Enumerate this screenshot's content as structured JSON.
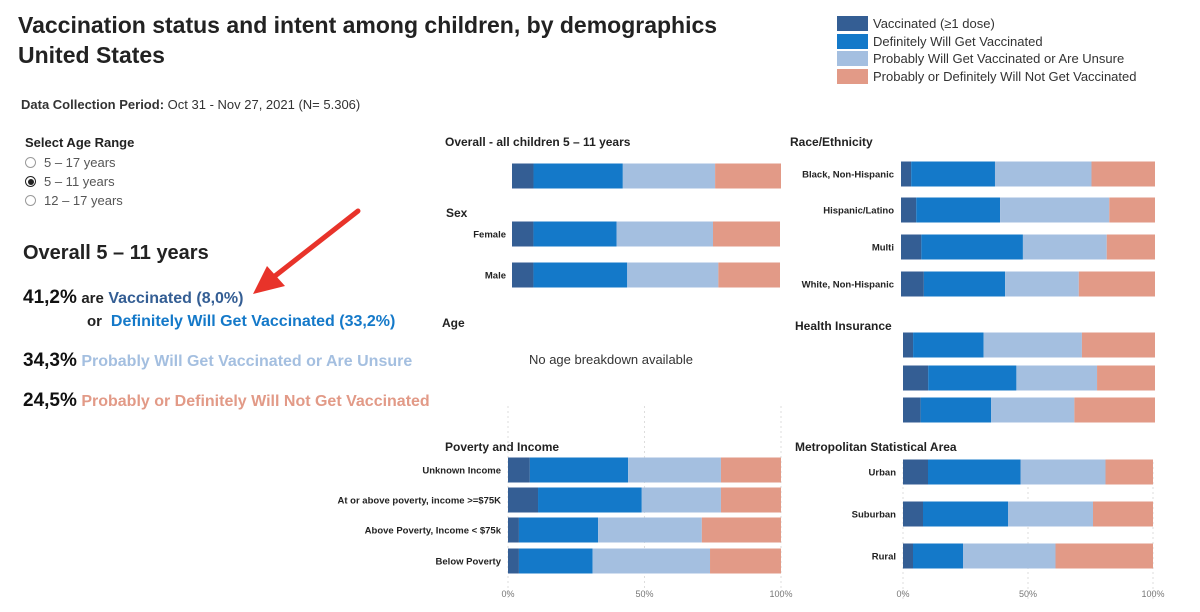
{
  "header": {
    "title_line1": "Vaccination status and intent among children, by demographics",
    "title_line2": "United States"
  },
  "collection": {
    "label": "Data Collection Period:",
    "value": "Oct 31 - Nov 27, 2021  (N= 5.306)"
  },
  "legend": [
    {
      "label": "Vaccinated (≥1 dose)",
      "color": "#345e94"
    },
    {
      "label": "Definitely Will Get Vaccinated",
      "color": "#1479c9"
    },
    {
      "label": "Probably Will Get Vaccinated or Are Unsure",
      "color": "#a4bfe0"
    },
    {
      "label": "Probably or Definitely Will Not Get Vaccinated",
      "color": "#e29a87"
    }
  ],
  "age_filter": {
    "title": "Select Age Range",
    "options": [
      "5 – 17 years",
      "5 – 11 years",
      "12 – 17 years"
    ],
    "selected": "5 – 11 years"
  },
  "summary": {
    "title": "Overall 5 – 11 years",
    "line1_pct": "41,2%",
    "line1_word": "are",
    "line1_text": "Vaccinated (8,0%)",
    "line2_word": "or",
    "line2_text": "Definitely Will Get Vaccinated (33,2%)",
    "line3_pct": "34,3%",
    "line3_text": "Probably Will Get Vaccinated or Are Unsure",
    "line4_pct": "24,5%",
    "line4_text": "Probably or Definitely Will Not Get Vaccinated"
  },
  "chart_data": [
    {
      "type": "bar",
      "stacked": true,
      "orientation": "horizontal",
      "title": "Overall - all children 5 – 11 years",
      "categories": [
        ""
      ],
      "series": [
        {
          "name": "Vaccinated (≥1 dose)",
          "values": [
            8.0
          ]
        },
        {
          "name": "Definitely Will Get Vaccinated",
          "values": [
            33.2
          ]
        },
        {
          "name": "Probably Will Get Vaccinated or Are Unsure",
          "values": [
            34.3
          ]
        },
        {
          "name": "Probably or Definitely Will Not Get Vaccinated",
          "values": [
            24.5
          ]
        }
      ],
      "xlim": [
        0,
        100
      ]
    },
    {
      "type": "bar",
      "stacked": true,
      "orientation": "horizontal",
      "title": "Sex",
      "categories": [
        "Female",
        "Male"
      ],
      "series": [
        {
          "name": "Vaccinated (≥1 dose)",
          "values": [
            8,
            8
          ]
        },
        {
          "name": "Definitely Will Get Vaccinated",
          "values": [
            31,
            35
          ]
        },
        {
          "name": "Probably Will Get Vaccinated or Are Unsure",
          "values": [
            36,
            34
          ]
        },
        {
          "name": "Probably or Definitely Will Not Get Vaccinated",
          "values": [
            25,
            23
          ]
        }
      ],
      "xlim": [
        0,
        100
      ]
    },
    {
      "type": "bar",
      "stacked": true,
      "orientation": "horizontal",
      "title": "Age",
      "categories": [],
      "series": [],
      "note": "No age breakdown available"
    },
    {
      "type": "bar",
      "stacked": true,
      "orientation": "horizontal",
      "title": "Poverty and Income",
      "categories": [
        "Unknown Income",
        "At or above poverty, income >=$75K",
        "Above Poverty, Income < $75k",
        "Below Poverty"
      ],
      "series": [
        {
          "name": "Vaccinated (≥1 dose)",
          "values": [
            8,
            11,
            4,
            4
          ]
        },
        {
          "name": "Definitely Will Get Vaccinated",
          "values": [
            36,
            38,
            29,
            27
          ]
        },
        {
          "name": "Probably Will Get Vaccinated or Are Unsure",
          "values": [
            34,
            29,
            38,
            43
          ]
        },
        {
          "name": "Probably or Definitely Will Not Get Vaccinated",
          "values": [
            22,
            22,
            29,
            26
          ]
        }
      ],
      "xlim": [
        0,
        100
      ],
      "xticks": [
        "0%",
        "50%",
        "100%"
      ]
    },
    {
      "type": "bar",
      "stacked": true,
      "orientation": "horizontal",
      "title": "Race/Ethnicity",
      "categories": [
        "Black, Non-Hispanic",
        "Hispanic/Latino",
        "Multi",
        "White, Non-Hispanic"
      ],
      "series": [
        {
          "name": "Vaccinated (≥1 dose)",
          "values": [
            4,
            6,
            8,
            9
          ]
        },
        {
          "name": "Definitely Will Get Vaccinated",
          "values": [
            33,
            33,
            40,
            32
          ]
        },
        {
          "name": "Probably Will Get Vaccinated or Are Unsure",
          "values": [
            38,
            43,
            33,
            29
          ]
        },
        {
          "name": "Probably or Definitely Will Not Get Vaccinated",
          "values": [
            25,
            18,
            19,
            30
          ]
        }
      ],
      "xlim": [
        0,
        100
      ]
    },
    {
      "type": "bar",
      "stacked": true,
      "orientation": "horizontal",
      "title": "Health Insurance",
      "categories": [
        "",
        "",
        ""
      ],
      "series": [
        {
          "name": "Vaccinated (≥1 dose)",
          "values": [
            4,
            10,
            7
          ]
        },
        {
          "name": "Definitely Will Get Vaccinated",
          "values": [
            28,
            35,
            28
          ]
        },
        {
          "name": "Probably Will Get Vaccinated or Are Unsure",
          "values": [
            39,
            32,
            33
          ]
        },
        {
          "name": "Probably or Definitely Will Not Get Vaccinated",
          "values": [
            29,
            23,
            32
          ]
        }
      ],
      "xlim": [
        0,
        100
      ]
    },
    {
      "type": "bar",
      "stacked": true,
      "orientation": "horizontal",
      "title": "Metropolitan Statistical Area",
      "categories": [
        "Urban",
        "Suburban",
        "Rural"
      ],
      "series": [
        {
          "name": "Vaccinated (≥1 dose)",
          "values": [
            10,
            8,
            4
          ]
        },
        {
          "name": "Definitely Will Get Vaccinated",
          "values": [
            37,
            34,
            20
          ]
        },
        {
          "name": "Probably Will Get Vaccinated or Are Unsure",
          "values": [
            34,
            34,
            37
          ]
        },
        {
          "name": "Probably or Definitely Will Not Get Vaccinated",
          "values": [
            19,
            24,
            39
          ]
        }
      ],
      "xlim": [
        0,
        100
      ],
      "xticks": [
        "0%",
        "50%",
        "100%"
      ]
    }
  ]
}
